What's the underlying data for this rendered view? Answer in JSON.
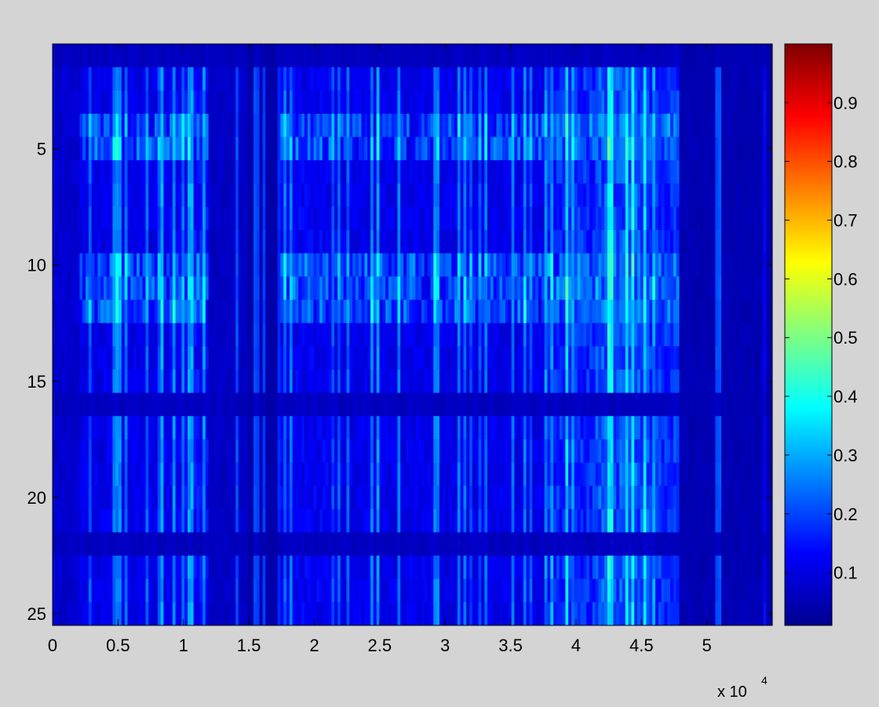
{
  "figure": {
    "background": "#d4d4d4"
  },
  "chart_data": {
    "type": "heatmap",
    "title": "",
    "xlabel": "",
    "ylabel": "",
    "x_exponent_label": "x 10",
    "x_exponent_power": "4",
    "xlim": [
      0,
      5.5
    ],
    "ylim": [
      0.5,
      25.5
    ],
    "x_unit_multiplier": 10000,
    "x_ticks": [
      0,
      0.5,
      1,
      1.5,
      2,
      2.5,
      3,
      3.5,
      4,
      4.5,
      5
    ],
    "x_tick_labels": [
      "0",
      "0.5",
      "1",
      "1.5",
      "2",
      "2.5",
      "3",
      "3.5",
      "4",
      "4.5",
      "5"
    ],
    "y_ticks": [
      5,
      10,
      15,
      20,
      25
    ],
    "y_tick_labels": [
      "5",
      "10",
      "15",
      "20",
      "25"
    ],
    "rows": 25,
    "y_direction": "reversed",
    "grid": false,
    "colormap": "jet",
    "colorbar": {
      "location": "right",
      "range": [
        0.01,
        1
      ],
      "ticks": [
        0.1,
        0.2,
        0.3,
        0.4,
        0.5,
        0.6,
        0.7,
        0.8,
        0.9
      ],
      "tick_labels": [
        "0.1",
        "0.2",
        "0.3",
        "0.4",
        "0.5",
        "0.6",
        "0.7",
        "0.8",
        "0.9"
      ]
    },
    "column_profile": {
      "x_breaks": [
        0,
        0.2,
        0.8,
        1.0,
        1.2,
        1.5,
        1.75,
        2.2,
        3.75,
        4.15,
        4.55,
        4.8,
        5.45,
        5.5
      ],
      "base_values": [
        0.07,
        0.1,
        0.11,
        0.13,
        0.06,
        0.03,
        0.11,
        0.1,
        0.16,
        0.2,
        0.17,
        0.04,
        0.03
      ],
      "bright_rows": [
        4,
        5,
        10,
        11,
        12
      ],
      "bright_value": 0.3,
      "dark_rows": [
        1,
        16,
        22
      ],
      "dark_value": 0.04
    }
  }
}
